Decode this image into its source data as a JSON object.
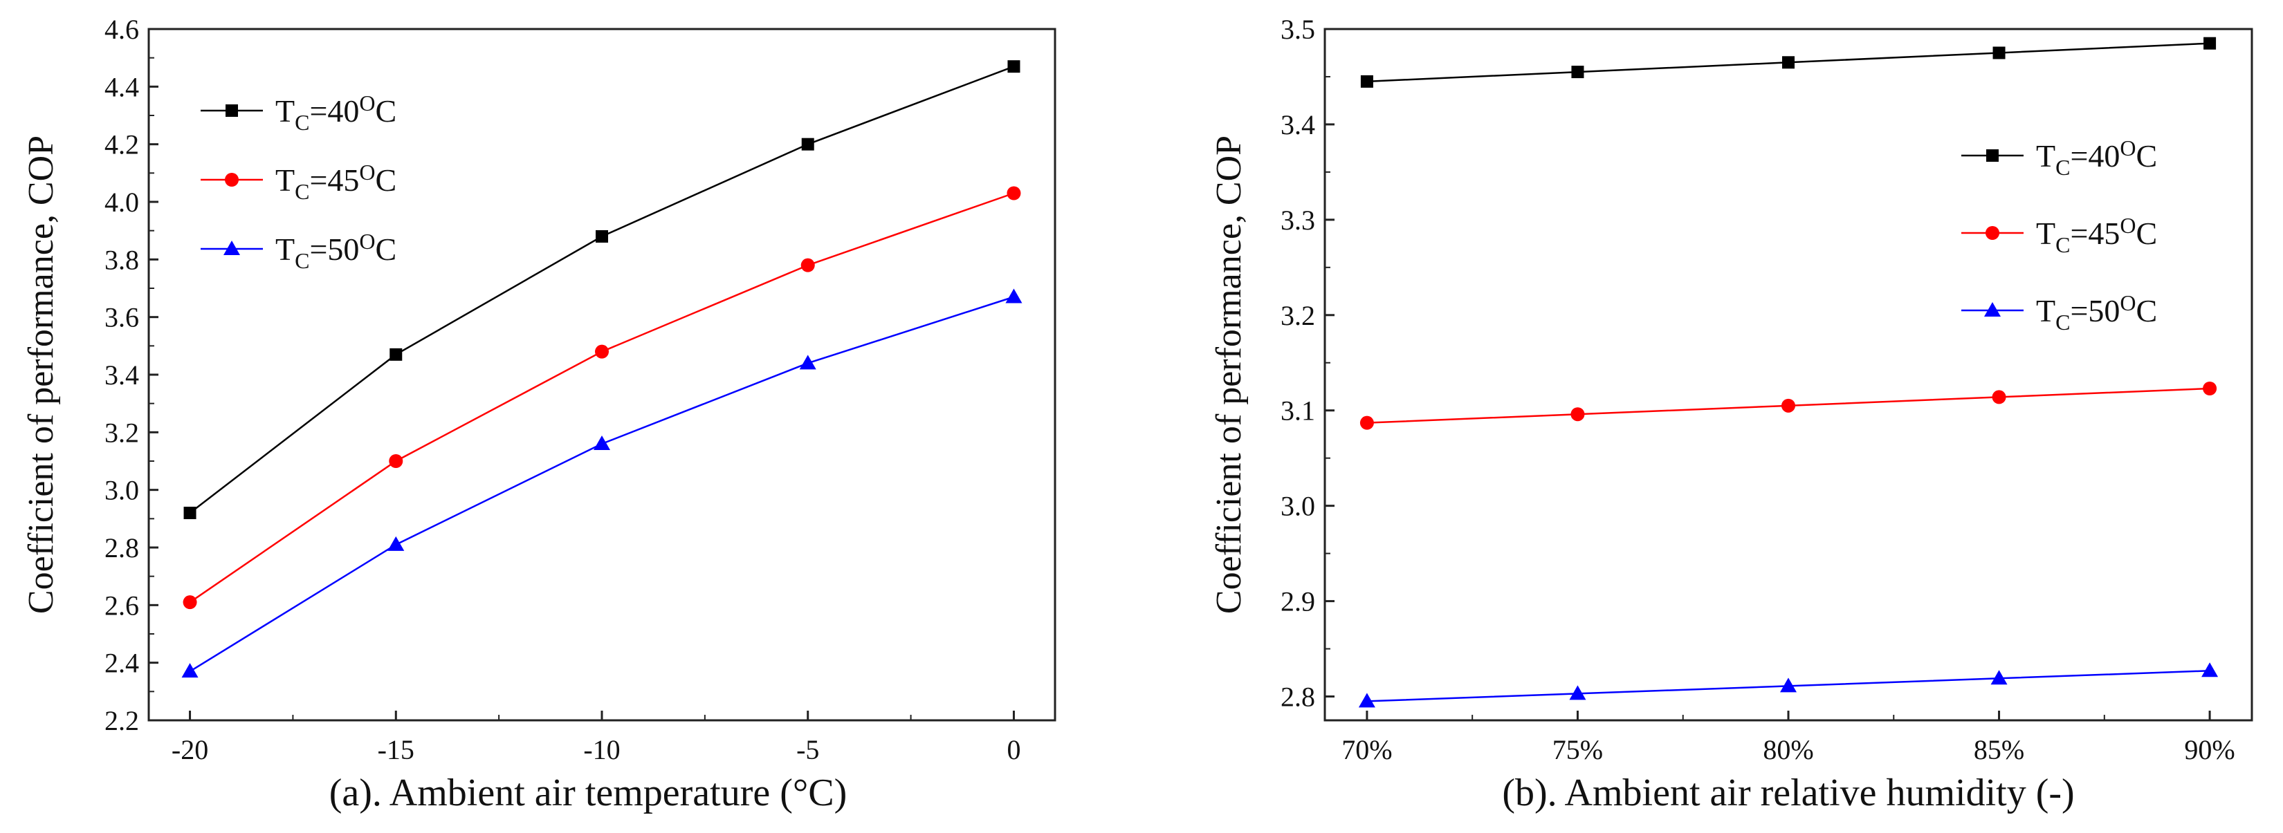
{
  "chart_data": [
    {
      "type": "line",
      "caption": "(a). Ambient air temperature (°C)",
      "xlabel": "",
      "ylabel": "Coefficient of performance, COP",
      "categories": [
        "-20",
        "-15",
        "-10",
        "-5",
        "0"
      ],
      "x": [
        -20,
        -15,
        -10,
        -5,
        0
      ],
      "xlim": [
        -21,
        1
      ],
      "ylim": [
        2.2,
        4.6
      ],
      "yticks": [
        "2.2",
        "2.4",
        "2.6",
        "2.8",
        "3.0",
        "3.2",
        "3.4",
        "3.6",
        "3.8",
        "4.0",
        "4.2",
        "4.4",
        "4.6"
      ],
      "legend_position": "top-left",
      "grid": false,
      "series": [
        {
          "name": "Tc=40oC",
          "label_main": "T",
          "label_sub": "C",
          "label_mid": "=40",
          "label_sup": "O",
          "label_end": "C",
          "color": "#000000",
          "marker": "square",
          "values": [
            2.92,
            3.47,
            3.88,
            4.2,
            4.47
          ]
        },
        {
          "name": "Tc=45oC",
          "label_main": "T",
          "label_sub": "C",
          "label_mid": "=45",
          "label_sup": "O",
          "label_end": "C",
          "color": "#ff0000",
          "marker": "circle",
          "values": [
            2.61,
            3.1,
            3.48,
            3.78,
            4.03
          ]
        },
        {
          "name": "Tc=50oC",
          "label_main": "T",
          "label_sub": "C",
          "label_mid": "=50",
          "label_sup": "O",
          "label_end": "C",
          "color": "#0000ff",
          "marker": "triangle",
          "values": [
            2.37,
            2.81,
            3.16,
            3.44,
            3.67
          ]
        }
      ]
    },
    {
      "type": "line",
      "caption": "(b). Ambient air relative humidity (-)",
      "xlabel": "",
      "ylabel": "Coefficient of performance, COP",
      "categories": [
        "70%",
        "75%",
        "80%",
        "85%",
        "90%"
      ],
      "x": [
        70,
        75,
        80,
        85,
        90
      ],
      "xlim": [
        69,
        91
      ],
      "ylim": [
        2.775,
        3.5
      ],
      "yticks": [
        "2.8",
        "2.9",
        "3.0",
        "3.1",
        "3.2",
        "3.3",
        "3.4",
        "3.5"
      ],
      "legend_position": "top-right",
      "grid": false,
      "series": [
        {
          "name": "Tc=40oC",
          "label_main": "T",
          "label_sub": "C",
          "label_mid": "=40",
          "label_sup": "O",
          "label_end": "C",
          "color": "#000000",
          "marker": "square",
          "values": [
            3.445,
            3.455,
            3.465,
            3.475,
            3.485
          ]
        },
        {
          "name": "Tc=45oC",
          "label_main": "T",
          "label_sub": "C",
          "label_mid": "=45",
          "label_sup": "O",
          "label_end": "C",
          "color": "#ff0000",
          "marker": "circle",
          "values": [
            3.087,
            3.096,
            3.105,
            3.114,
            3.123
          ]
        },
        {
          "name": "Tc=50oC",
          "label_main": "T",
          "label_sub": "C",
          "label_mid": "=50",
          "label_sup": "O",
          "label_end": "C",
          "color": "#0000ff",
          "marker": "triangle",
          "values": [
            2.795,
            2.803,
            2.811,
            2.819,
            2.827
          ]
        }
      ]
    }
  ]
}
